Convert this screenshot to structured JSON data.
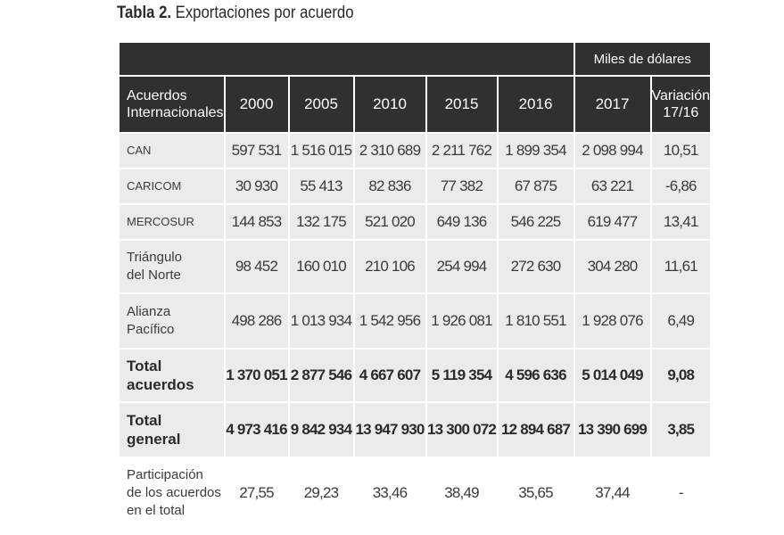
{
  "caption": {
    "label": "Tabla 2.",
    "title": "Exportaciones por acuerdo"
  },
  "table": {
    "units": "Miles de dólares",
    "header": {
      "first_line1": "Acuerdos",
      "first_line2": "Internacionales",
      "years": [
        "2000",
        "2005",
        "2010",
        "2015",
        "2016",
        "2017"
      ],
      "last_line1": "Variación",
      "last_line2": "17/16"
    },
    "rows": [
      {
        "label1": "CAN",
        "label2": "",
        "values": [
          "597 531",
          "1 516 015",
          "2 310 689",
          "2 211 762",
          "1 899 354",
          "2 098 994",
          "10,51"
        ]
      },
      {
        "label1": "CARICOM",
        "label2": "",
        "values": [
          "30 930",
          "55 413",
          "82 836",
          "77 382",
          "67 875",
          "63 221",
          "-6,86"
        ]
      },
      {
        "label1": "MERCOSUR",
        "label2": "",
        "values": [
          "144 853",
          "132 175",
          "521 020",
          "649 136",
          "546 225",
          "619 477",
          "13,41"
        ]
      },
      {
        "label1": "Triángulo",
        "label2": "del Norte",
        "values": [
          "98 452",
          "160 010",
          "210 106",
          "254 994",
          "272 630",
          "304 280",
          "11,61"
        ]
      },
      {
        "label1": "Alianza",
        "label2": "Pacífico",
        "values": [
          "498 286",
          "1 013 934",
          "1 542 956",
          "1 926 081",
          "1 810 551",
          "1 928 076",
          "6,49"
        ]
      },
      {
        "label1": "Total",
        "label2": "acuerdos",
        "values": [
          "1 370 051",
          "2 877 546",
          "4 667 607",
          "5 119 354",
          "4 596 636",
          "5 014 049",
          "9,08"
        ]
      },
      {
        "label1": "Total",
        "label2": "general",
        "values": [
          "4 973 416",
          "9 842 934",
          "13 947 930",
          "13 300 072",
          "12 894 687",
          "13 390 699",
          "3,85"
        ]
      },
      {
        "label1": "Participación",
        "label2": "de los acuerdos",
        "label3": "en el total",
        "values": [
          "27,55",
          "29,23",
          "33,46",
          "38,49",
          "35,65",
          "37,44",
          "-"
        ]
      }
    ]
  }
}
